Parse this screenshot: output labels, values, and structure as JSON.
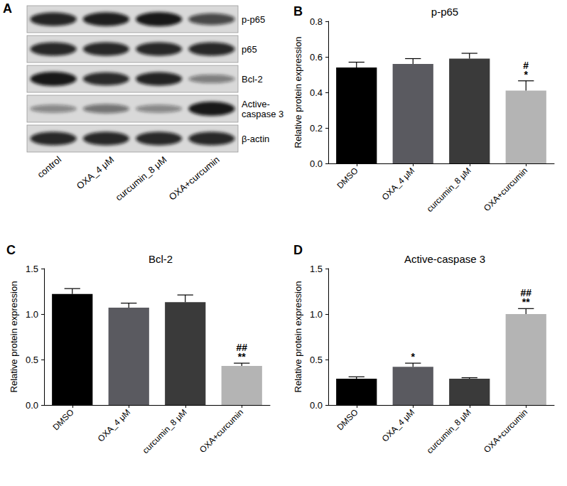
{
  "blot": {
    "panel": "A",
    "rows": [
      "p-p65",
      "p65",
      "Bcl-2",
      "Active-\ncaspase 3",
      "β-actin"
    ],
    "lanes": [
      "control",
      "OXA_4 μM",
      "curcumin_8 μM",
      "OXA+curcumin"
    ]
  },
  "chart_data": [
    {
      "type": "bar",
      "panel": "B",
      "title": "p-p65",
      "y_label": "Relative protein expression",
      "categories": [
        "DMSO",
        "OXA_4 μM",
        "curcumin_8 μM",
        "OXA+curcumin"
      ],
      "values": [
        0.54,
        0.56,
        0.59,
        0.41
      ],
      "errors": [
        0.03,
        0.03,
        0.03,
        0.055
      ],
      "colors": [
        "#000000",
        "#5a5a60",
        "#3a3a3a",
        "#b4b4b4"
      ],
      "annotations": [
        {
          "category": "OXA+curcumin",
          "text": "#"
        },
        {
          "category": "OXA+curcumin",
          "text": "*"
        }
      ],
      "ylim": [
        0,
        0.8
      ],
      "yticks": [
        {
          "value": 0,
          "label": "0.0"
        },
        0.2,
        0.4,
        0.6,
        0.8
      ],
      "grid": false
    },
    {
      "type": "bar",
      "panel": "C",
      "title": "Bcl-2",
      "y_label": "Relative protein expression",
      "categories": [
        "DMSO",
        "OXA_4 μM",
        "curcumin_8 μM",
        "OXA+curcumin"
      ],
      "values": [
        1.22,
        1.07,
        1.13,
        0.43
      ],
      "errors": [
        0.06,
        0.05,
        0.08,
        0.03
      ],
      "colors": [
        "#000000",
        "#5a5a60",
        "#3a3a3a",
        "#b4b4b4"
      ],
      "annotations": [
        {
          "category": "OXA+curcumin",
          "text": "##"
        },
        {
          "category": "OXA+curcumin",
          "text": "**"
        }
      ],
      "ylim": [
        0,
        1.5
      ],
      "yticks": [
        {
          "value": 0,
          "label": "0.0"
        },
        0.5,
        {
          "value": 1,
          "label": "1.0"
        },
        1.5
      ],
      "grid": false
    },
    {
      "type": "bar",
      "panel": "D",
      "title": "Active-caspase 3",
      "y_label": "Relative protein expression",
      "categories": [
        "DMSO",
        "OXA_4 μM",
        "curcumin_8 μM",
        "OXA+curcumin"
      ],
      "values": [
        0.29,
        0.42,
        0.29,
        1.0
      ],
      "errors": [
        0.02,
        0.04,
        0.01,
        0.06
      ],
      "colors": [
        "#000000",
        "#5a5a60",
        "#3a3a3a",
        "#b4b4b4"
      ],
      "annotations": [
        {
          "category": "OXA_4 μM",
          "text": "*"
        },
        {
          "category": "OXA+curcumin",
          "text": "##"
        },
        {
          "category": "OXA+curcumin",
          "text": "**"
        }
      ],
      "ylim": [
        0,
        1.5
      ],
      "yticks": [
        {
          "value": 0,
          "label": "0.0"
        },
        0.5,
        {
          "value": 1,
          "label": "1.0"
        },
        1.5
      ],
      "grid": false
    }
  ]
}
